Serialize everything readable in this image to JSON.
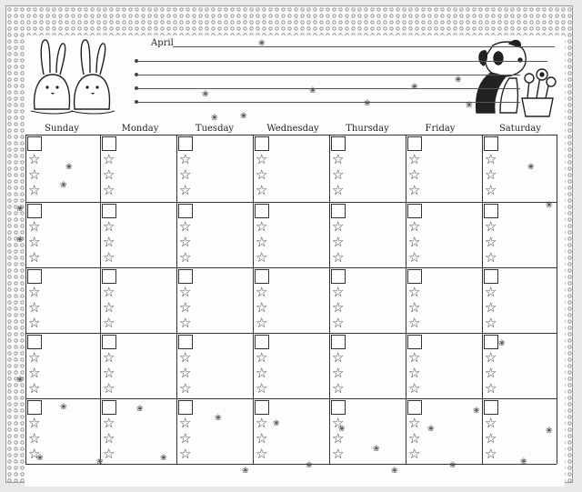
{
  "header": {
    "month": "April"
  },
  "days": [
    "Sunday",
    "Monday",
    "Tuesday",
    "Wednesday",
    "Thursday",
    "Friday",
    "Saturday"
  ],
  "icons": {
    "left_art": "bunny-pair-icon",
    "right_art": "puppy-with-flower-bucket-icon",
    "cell_marker": "star-icon",
    "decor": "flower-icon"
  },
  "grid": {
    "weeks": 5,
    "stars_per_cell": 3
  }
}
